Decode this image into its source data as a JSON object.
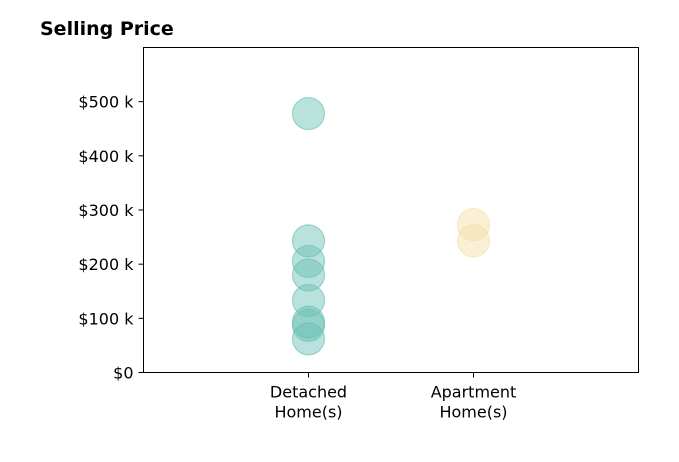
{
  "chart_data": {
    "type": "scatter",
    "title": "Selling Price",
    "xlabel": "",
    "ylabel": "",
    "categories": [
      [
        "Detached",
        "Home(s)"
      ],
      [
        "Apartment",
        "Home(s)"
      ]
    ],
    "x_range": [
      -1,
      2
    ],
    "ylim": [
      0,
      600000
    ],
    "y_ticks": [
      {
        "value": 0,
        "label": "$0"
      },
      {
        "value": 100000,
        "label": "$100 k"
      },
      {
        "value": 200000,
        "label": "$200 k"
      },
      {
        "value": 300000,
        "label": "$300 k"
      },
      {
        "value": 400000,
        "label": "$400 k"
      },
      {
        "value": 500000,
        "label": "$500 k"
      }
    ],
    "grid": false,
    "legend": "none",
    "series": [
      {
        "category_index": 0,
        "color": "#66bfb1",
        "values": [
          478000,
          243000,
          205000,
          180000,
          133000,
          93000,
          87000,
          62000
        ]
      },
      {
        "category_index": 1,
        "color": "#f5dda4",
        "values": [
          273000,
          243000
        ]
      }
    ]
  }
}
